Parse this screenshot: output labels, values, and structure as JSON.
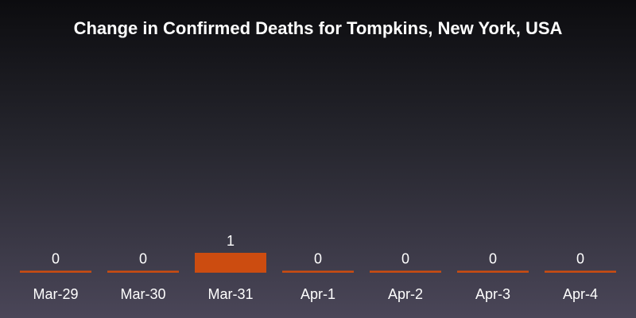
{
  "chart_data": {
    "type": "bar",
    "title": "Change in Confirmed Deaths for Tompkins, New York, USA",
    "xlabel": "",
    "ylabel": "",
    "categories": [
      "Mar-29",
      "Mar-30",
      "Mar-31",
      "Apr-1",
      "Apr-2",
      "Apr-3",
      "Apr-4"
    ],
    "values": [
      0,
      0,
      1,
      0,
      0,
      0,
      0
    ],
    "ylim": [
      0,
      1
    ],
    "grid": false,
    "bar_color": "#cc4c10",
    "text_color": "#ffffff"
  }
}
